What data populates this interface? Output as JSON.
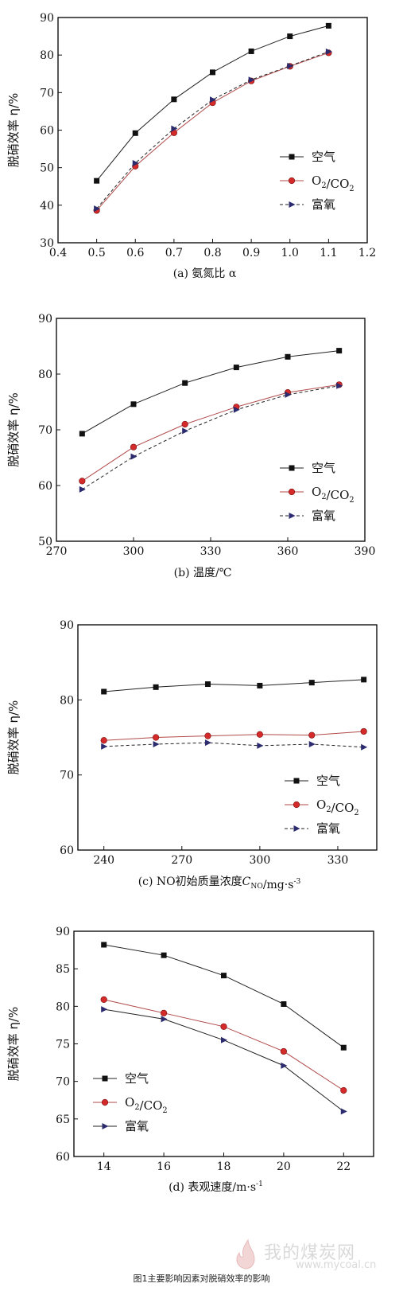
{
  "figure_caption": "图1主要影响因素对脱硝效率的影响",
  "watermark": {
    "text": "我的煤炭网",
    "url": "www.mycoal.cn"
  },
  "colors": {
    "air": "#111111",
    "o2co2": "#d42a2a",
    "oxygen": "#2b2b6e",
    "frame": "#111111"
  },
  "chart_data": [
    {
      "type": "line",
      "caption": "(a) 氨氮比 α",
      "ylabel": "脱硝效率 η/%",
      "xlim": [
        0.4,
        1.2
      ],
      "ylim": [
        30,
        90
      ],
      "xticks": [
        0.4,
        0.5,
        0.6,
        0.7,
        0.8,
        0.9,
        1.0,
        1.1,
        1.2
      ],
      "xtick_labels": [
        "0.4",
        "0.5",
        "0.6",
        "0.7",
        "0.8",
        "0.9",
        "1.0",
        "1.1",
        "1.2"
      ],
      "yticks": [
        30,
        40,
        50,
        60,
        70,
        80,
        90
      ],
      "ytick_labels": [
        "30",
        "40",
        "50",
        "60",
        "70",
        "80",
        "90"
      ],
      "legend_position": "right",
      "series": [
        {
          "name": "空气",
          "marker": "square",
          "style": "solid",
          "color": "#111111",
          "x": [
            0.5,
            0.6,
            0.7,
            0.8,
            0.9,
            1.0,
            1.1
          ],
          "y": [
            46.5,
            59.2,
            68.2,
            75.4,
            81.0,
            85.0,
            87.8
          ]
        },
        {
          "name": "O2/CO2",
          "marker": "circle",
          "style": "solid",
          "color": "#d42a2a",
          "x": [
            0.5,
            0.6,
            0.7,
            0.8,
            0.9,
            1.0,
            1.1
          ],
          "y": [
            38.6,
            50.4,
            59.3,
            67.3,
            73.1,
            77.0,
            80.6
          ]
        },
        {
          "name": "富氧",
          "marker": "triangle",
          "style": "dashed",
          "color": "#2b2b6e",
          "x": [
            0.5,
            0.6,
            0.7,
            0.8,
            0.9,
            1.0,
            1.1
          ],
          "y": [
            39.1,
            51.2,
            60.4,
            68.1,
            73.4,
            77.1,
            80.9
          ]
        }
      ]
    },
    {
      "type": "line",
      "caption": "(b) 温度/℃",
      "ylabel": "脱硝效率 η/%",
      "xlim": [
        270,
        390
      ],
      "ylim": [
        50,
        90
      ],
      "xticks": [
        270,
        300,
        330,
        360,
        390
      ],
      "xtick_labels": [
        "270",
        "300",
        "330",
        "360",
        "390"
      ],
      "yticks": [
        50,
        60,
        70,
        80,
        90
      ],
      "ytick_labels": [
        "50",
        "60",
        "70",
        "80",
        "90"
      ],
      "legend_position": "bottom-right",
      "series": [
        {
          "name": "空气",
          "marker": "square",
          "style": "solid",
          "color": "#111111",
          "x": [
            280,
            300,
            320,
            340,
            360,
            380
          ],
          "y": [
            69.3,
            74.6,
            78.4,
            81.2,
            83.1,
            84.2
          ]
        },
        {
          "name": "O2/CO2",
          "marker": "circle",
          "style": "solid",
          "color": "#d42a2a",
          "x": [
            280,
            300,
            320,
            340,
            360,
            380
          ],
          "y": [
            60.8,
            66.9,
            71.0,
            74.1,
            76.7,
            78.1
          ]
        },
        {
          "name": "富氧",
          "marker": "triangle",
          "style": "dashed",
          "color": "#2b2b6e",
          "x": [
            280,
            300,
            320,
            340,
            360,
            380
          ],
          "y": [
            59.3,
            65.2,
            69.8,
            73.6,
            76.3,
            77.9
          ]
        }
      ]
    },
    {
      "type": "line",
      "caption": "(c) NO初始质量浓度C_NO/mg·s⁻³",
      "ylabel": "脱硝效率 η/%",
      "xlim": [
        230,
        345
      ],
      "ylim": [
        60,
        90
      ],
      "xticks": [
        240,
        270,
        300,
        330
      ],
      "xtick_labels": [
        "240",
        "270",
        "300",
        "330"
      ],
      "yticks": [
        60,
        70,
        80,
        90
      ],
      "ytick_labels": [
        "60",
        "70",
        "80",
        "90"
      ],
      "legend_position": "bottom-right",
      "series": [
        {
          "name": "空气",
          "marker": "square",
          "style": "solid",
          "color": "#111111",
          "x": [
            240,
            260,
            280,
            300,
            320,
            340
          ],
          "y": [
            81.1,
            81.7,
            82.1,
            81.9,
            82.3,
            82.7
          ]
        },
        {
          "name": "O2/CO2",
          "marker": "circle",
          "style": "solid",
          "color": "#d42a2a",
          "x": [
            240,
            260,
            280,
            300,
            320,
            340
          ],
          "y": [
            74.6,
            75.0,
            75.2,
            75.4,
            75.3,
            75.8
          ]
        },
        {
          "name": "富氧",
          "marker": "triangle",
          "style": "dashed",
          "color": "#2b2b6e",
          "x": [
            240,
            260,
            280,
            300,
            320,
            340
          ],
          "y": [
            73.8,
            74.1,
            74.3,
            73.9,
            74.1,
            73.7
          ]
        }
      ]
    },
    {
      "type": "line",
      "caption": "(d) 表观速度/m·s⁻¹",
      "ylabel": "脱硝效率 η/%",
      "xlim": [
        13,
        23
      ],
      "ylim": [
        60,
        90
      ],
      "xticks": [
        14,
        16,
        18,
        20,
        22
      ],
      "xtick_labels": [
        "14",
        "16",
        "18",
        "20",
        "22"
      ],
      "yticks": [
        60,
        65,
        70,
        75,
        80,
        85,
        90
      ],
      "ytick_labels": [
        "60",
        "65",
        "70",
        "75",
        "80",
        "85",
        "90"
      ],
      "legend_position": "bottom-left",
      "series": [
        {
          "name": "空气",
          "marker": "square",
          "style": "solid",
          "color": "#111111",
          "x": [
            14,
            16,
            18,
            20,
            22
          ],
          "y": [
            88.2,
            86.8,
            84.1,
            80.3,
            74.5
          ]
        },
        {
          "name": "O2/CO2",
          "marker": "circle",
          "style": "solid",
          "color": "#d42a2a",
          "x": [
            14,
            16,
            18,
            20,
            22
          ],
          "y": [
            80.9,
            79.1,
            77.3,
            74.0,
            68.8
          ]
        },
        {
          "name": "富氧",
          "marker": "triangle",
          "style": "solid",
          "color": "#2b2b6e",
          "x": [
            14,
            16,
            18,
            20,
            22
          ],
          "y": [
            79.6,
            78.3,
            75.5,
            72.1,
            66.0
          ]
        }
      ]
    }
  ]
}
